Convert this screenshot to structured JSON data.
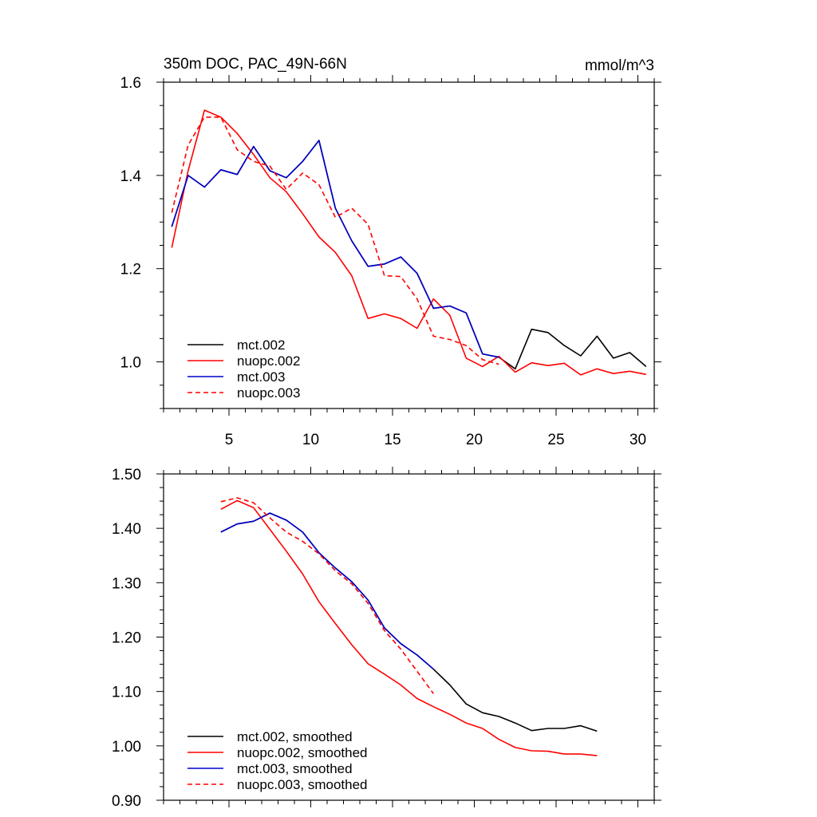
{
  "chart_data": [
    {
      "type": "line",
      "title": "350m DOC, PAC_49N-66N",
      "units": "mmol/m^3",
      "xlim": [
        1,
        31
      ],
      "ylim": [
        0.9,
        1.6
      ],
      "x_major_ticks": [
        5,
        10,
        15,
        20,
        25,
        30
      ],
      "x_tick_labels": [
        "5",
        "10",
        "15",
        "20",
        "25",
        "30"
      ],
      "y_major_ticks": [
        1.0,
        1.2,
        1.4,
        1.6
      ],
      "y_tick_labels": [
        "1.0",
        "1.2",
        "1.4",
        "1.6"
      ],
      "legend_position": "bottom-left",
      "grid": false,
      "series": [
        {
          "name": "mct.002",
          "color": "#000000",
          "dash": "solid",
          "x": [
            1.5,
            2.5,
            3.5,
            4.5,
            5.5,
            6.5,
            7.5,
            8.5,
            9.5,
            10.5,
            11.5,
            12.5,
            13.5,
            14.5,
            15.5,
            16.5,
            17.5,
            18.5,
            19.5,
            20.5,
            21.5,
            22.5,
            23.5,
            24.5,
            25.5,
            26.5,
            27.5,
            28.5,
            29.5,
            30.5
          ],
          "values": [
            1.29,
            1.4,
            1.375,
            1.412,
            1.402,
            1.462,
            1.41,
            1.395,
            1.43,
            1.475,
            1.33,
            1.26,
            1.205,
            1.21,
            1.225,
            1.19,
            1.115,
            1.12,
            1.105,
            1.017,
            1.01,
            0.985,
            1.07,
            1.063,
            1.035,
            1.013,
            1.055,
            1.008,
            1.02,
            0.99
          ]
        },
        {
          "name": "nuopc.002",
          "color": "#ff0000",
          "dash": "solid",
          "x": [
            1.5,
            2.5,
            3.5,
            4.5,
            5.5,
            6.5,
            7.5,
            8.5,
            9.5,
            10.5,
            11.5,
            12.5,
            13.5,
            14.5,
            15.5,
            16.5,
            17.5,
            18.5,
            19.5,
            20.5,
            21.5,
            22.5,
            23.5,
            24.5,
            25.5,
            26.5,
            27.5,
            28.5,
            29.5,
            30.5
          ],
          "values": [
            1.245,
            1.41,
            1.54,
            1.525,
            1.49,
            1.445,
            1.395,
            1.365,
            1.318,
            1.268,
            1.235,
            1.185,
            1.093,
            1.103,
            1.093,
            1.072,
            1.135,
            1.1,
            1.008,
            0.99,
            1.012,
            0.978,
            0.998,
            0.992,
            0.997,
            0.972,
            0.985,
            0.975,
            0.98,
            0.973
          ]
        },
        {
          "name": "mct.003",
          "color": "#0000cc",
          "dash": "solid",
          "x": [
            1.5,
            2.5,
            3.5,
            4.5,
            5.5,
            6.5,
            7.5,
            8.5,
            9.5,
            10.5,
            11.5,
            12.5,
            13.5,
            14.5,
            15.5,
            16.5,
            17.5,
            18.5,
            19.5,
            20.5,
            21.5
          ],
          "values": [
            1.29,
            1.4,
            1.375,
            1.412,
            1.402,
            1.462,
            1.41,
            1.395,
            1.43,
            1.475,
            1.33,
            1.26,
            1.205,
            1.21,
            1.225,
            1.19,
            1.115,
            1.12,
            1.105,
            1.017,
            1.01
          ]
        },
        {
          "name": "nuopc.003",
          "color": "#ff0000",
          "dash": "dashed",
          "x": [
            1.5,
            2.5,
            3.5,
            4.5,
            5.5,
            6.5,
            7.5,
            8.5,
            9.5,
            10.5,
            11.5,
            12.5,
            13.5,
            14.5,
            15.5,
            16.5,
            17.5,
            18.5,
            19.5,
            20.5,
            21.5
          ],
          "values": [
            1.32,
            1.465,
            1.525,
            1.525,
            1.455,
            1.43,
            1.42,
            1.37,
            1.405,
            1.38,
            1.31,
            1.33,
            1.295,
            1.185,
            1.183,
            1.135,
            1.055,
            1.048,
            1.035,
            1.005,
            0.995
          ]
        }
      ]
    },
    {
      "type": "line",
      "title": "",
      "xlim": [
        1,
        31
      ],
      "ylim": [
        0.9,
        1.5
      ],
      "x_major_ticks": [
        5,
        10,
        15,
        20,
        25,
        30
      ],
      "y_major_ticks": [
        0.9,
        1.0,
        1.1,
        1.2,
        1.3,
        1.4,
        1.5
      ],
      "y_tick_labels": [
        "0.90",
        "1.00",
        "1.10",
        "1.20",
        "1.30",
        "1.40",
        "1.50"
      ],
      "legend_position": "bottom-left",
      "grid": false,
      "series": [
        {
          "name": "mct.002, smoothed",
          "color": "#000000",
          "dash": "solid",
          "x": [
            4.5,
            5.5,
            6.5,
            7.5,
            8.5,
            9.5,
            10.5,
            11.5,
            12.5,
            13.5,
            14.5,
            15.5,
            16.5,
            17.5,
            18.5,
            19.5,
            20.5,
            21.5,
            22.5,
            23.5,
            24.5,
            25.5,
            26.5,
            27.5
          ],
          "values": [
            1.393,
            1.408,
            1.413,
            1.428,
            1.415,
            1.393,
            1.355,
            1.327,
            1.302,
            1.268,
            1.217,
            1.188,
            1.167,
            1.141,
            1.112,
            1.077,
            1.061,
            1.054,
            1.042,
            1.028,
            1.032,
            1.032,
            1.037,
            1.027
          ]
        },
        {
          "name": "nuopc.002, smoothed",
          "color": "#ff0000",
          "dash": "solid",
          "x": [
            4.5,
            5.5,
            6.5,
            7.5,
            8.5,
            9.5,
            10.5,
            11.5,
            12.5,
            13.5,
            14.5,
            15.5,
            16.5,
            17.5,
            18.5,
            19.5,
            20.5,
            21.5,
            22.5,
            23.5,
            24.5,
            25.5,
            26.5,
            27.5
          ],
          "values": [
            1.435,
            1.451,
            1.438,
            1.398,
            1.358,
            1.316,
            1.265,
            1.225,
            1.186,
            1.151,
            1.132,
            1.112,
            1.087,
            1.072,
            1.058,
            1.042,
            1.032,
            1.012,
            0.997,
            0.991,
            0.99,
            0.985,
            0.985,
            0.982
          ]
        },
        {
          "name": "mct.003, smoothed",
          "color": "#0000cc",
          "dash": "solid",
          "x": [
            4.5,
            5.5,
            6.5,
            7.5,
            8.5,
            9.5,
            10.5,
            11.5,
            12.5,
            13.5,
            14.5,
            15.5,
            16.5,
            17.5
          ],
          "values": [
            1.393,
            1.408,
            1.413,
            1.428,
            1.415,
            1.393,
            1.355,
            1.327,
            1.302,
            1.268,
            1.217,
            1.188,
            1.167,
            1.141
          ]
        },
        {
          "name": "nuopc.003, smoothed",
          "color": "#ff0000",
          "dash": "dashed",
          "x": [
            4.5,
            5.5,
            6.5,
            7.5,
            8.5,
            9.5,
            10.5,
            11.5,
            12.5,
            13.5,
            14.5,
            15.5,
            16.5,
            17.5
          ],
          "values": [
            1.449,
            1.456,
            1.447,
            1.419,
            1.393,
            1.376,
            1.353,
            1.322,
            1.298,
            1.262,
            1.212,
            1.178,
            1.137,
            1.096
          ]
        }
      ]
    }
  ]
}
